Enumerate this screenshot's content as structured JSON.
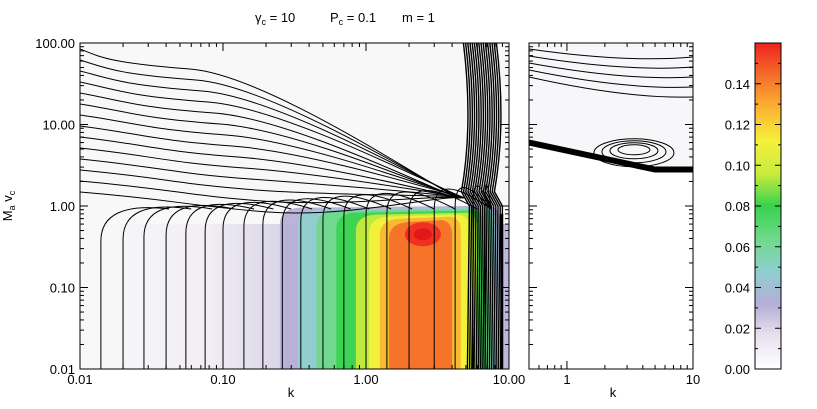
{
  "chart_data": [
    {
      "type": "heatmap",
      "panel": "main",
      "title_parts": [
        {
          "sym": "γ",
          "sub": "c",
          "rest": " = 10"
        },
        {
          "sym": "P",
          "sub": "c",
          "rest": " = 0.1"
        },
        {
          "sym": "m",
          "sub": "",
          "rest": " = 1"
        }
      ],
      "xlabel": "k",
      "ylabel": {
        "main": "M",
        "sub1": "a",
        "mid": " v",
        "sub2": "c"
      },
      "x_scale": "log",
      "y_scale": "log",
      "xlim": [
        0.01,
        10
      ],
      "ylim": [
        0.01,
        100
      ],
      "x_ticks": [
        "0.01",
        "0.10",
        "1.00",
        "10.00"
      ],
      "y_ticks": [
        "0.01",
        "0.10",
        "1.00",
        "10.00",
        "100.00"
      ],
      "contours": "black contour lines of growth rate",
      "peak": {
        "k": 2.5,
        "y": 0.45,
        "value": 0.155
      }
    },
    {
      "type": "heatmap",
      "panel": "zoom",
      "xlabel": "k",
      "x_scale": "log",
      "y_scale": "log",
      "xlim": [
        0.5,
        10
      ],
      "ylim": [
        0.01,
        100
      ],
      "x_ticks": [
        "1",
        "10"
      ],
      "unstable_region": "upper branch, y from about 3 to 100"
    },
    {
      "type": "colorbar",
      "range": [
        0,
        0.16
      ],
      "ticks": [
        "0.00",
        "0.02",
        "0.04",
        "0.06",
        "0.08",
        "0.10",
        "0.12",
        "0.14"
      ],
      "colormap": [
        "#ffffff",
        "#e8e2ef",
        "#b5aed6",
        "#8ecfcf",
        "#6fd98a",
        "#38d24e",
        "#c9ec3c",
        "#f5f03a",
        "#fbb432",
        "#f56e28",
        "#ee2420"
      ]
    }
  ]
}
